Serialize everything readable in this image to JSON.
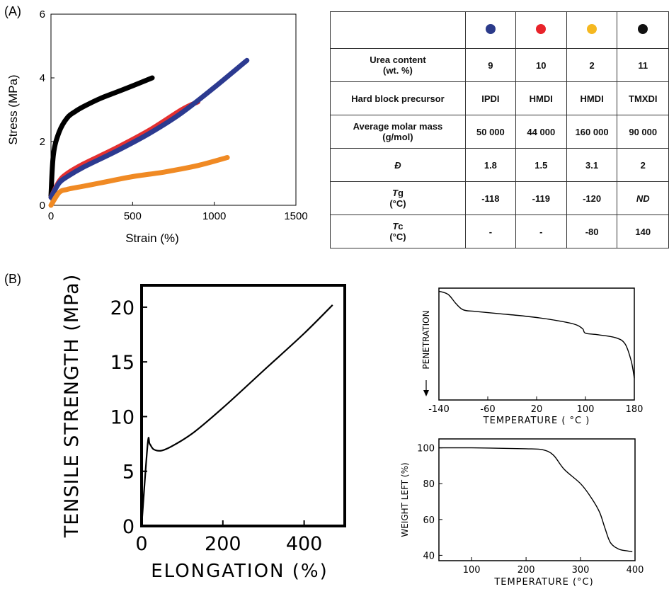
{
  "panels": {
    "a_label": "(A)",
    "b_label": "(B)"
  },
  "chart_data": [
    {
      "id": "A-stress-strain",
      "type": "line",
      "xlabel": "Strain (%)",
      "ylabel": "Stress (MPa)",
      "xlim": [
        0,
        1500
      ],
      "ylim": [
        0,
        6
      ],
      "xticks": [
        0,
        500,
        1000,
        1500
      ],
      "yticks": [
        0,
        2,
        4,
        6
      ],
      "grid": false,
      "series": [
        {
          "color": "#000000",
          "x": [
            0,
            15,
            50,
            100,
            150,
            200,
            300,
            400,
            500,
            620
          ],
          "y": [
            0.3,
            1.6,
            2.3,
            2.75,
            2.95,
            3.1,
            3.35,
            3.55,
            3.75,
            4.0
          ]
        },
        {
          "color": "#e53030",
          "x": [
            0,
            50,
            100,
            200,
            400,
            600,
            800,
            900
          ],
          "y": [
            0.25,
            0.75,
            1.0,
            1.3,
            1.8,
            2.35,
            3.0,
            3.25
          ]
        },
        {
          "color": "#2c3a90",
          "x": [
            0,
            50,
            100,
            200,
            400,
            600,
            800,
            1000,
            1200
          ],
          "y": [
            0.25,
            0.7,
            0.9,
            1.2,
            1.7,
            2.25,
            2.9,
            3.7,
            4.55
          ]
        },
        {
          "color": "#f08a24",
          "x": [
            0,
            50,
            100,
            200,
            300,
            500,
            700,
            900,
            1080
          ],
          "y": [
            0.0,
            0.4,
            0.5,
            0.6,
            0.7,
            0.9,
            1.05,
            1.25,
            1.5
          ]
        }
      ]
    },
    {
      "id": "B-tensile",
      "type": "line",
      "xlabel": "ELONGATION (%)",
      "ylabel": "TENSILE STRENGTH (MPa)",
      "xlim": [
        0,
        500
      ],
      "ylim": [
        0,
        22
      ],
      "xticks": [
        0,
        200,
        400
      ],
      "yticks": [
        0,
        5,
        10,
        15,
        20
      ],
      "grid": false,
      "series": [
        {
          "color": "#000000",
          "x": [
            0,
            15,
            20,
            30,
            50,
            80,
            130,
            200,
            300,
            400,
            470
          ],
          "y": [
            0,
            7.5,
            7.5,
            7.0,
            6.9,
            7.4,
            8.6,
            10.8,
            14.2,
            17.6,
            20.2
          ]
        }
      ]
    },
    {
      "id": "B-penetration",
      "type": "line",
      "xlabel": "TEMPERATURE ( °C )",
      "ylabel": "PENETRATION",
      "xlim": [
        -140,
        180
      ],
      "xticks": [
        -140,
        -60,
        20,
        100,
        180
      ],
      "grid": false,
      "series": [
        {
          "color": "#000000",
          "x": [
            -140,
            -125,
            -112,
            -100,
            -80,
            -40,
            0,
            40,
            80,
            95,
            100,
            120,
            150,
            165,
            175,
            180
          ],
          "y": [
            100,
            98,
            92,
            88,
            87,
            85.5,
            84,
            82,
            79,
            76,
            73,
            72,
            70,
            66,
            55,
            44
          ]
        }
      ]
    },
    {
      "id": "B-tga",
      "type": "line",
      "xlabel": "TEMPERATURE (°C)",
      "ylabel": "WEIGHT LEFT (%)",
      "xlim": [
        40,
        400
      ],
      "ylim": [
        37,
        105
      ],
      "xticks": [
        100,
        200,
        300,
        400
      ],
      "yticks": [
        40,
        60,
        80,
        100
      ],
      "grid": false,
      "series": [
        {
          "color": "#000000",
          "x": [
            40,
            100,
            150,
            200,
            230,
            250,
            270,
            300,
            320,
            335,
            345,
            355,
            370,
            385,
            395
          ],
          "y": [
            100,
            100,
            99.8,
            99.5,
            99,
            96,
            88,
            80,
            72,
            64,
            55,
            47,
            43.5,
            42.5,
            42
          ]
        }
      ]
    }
  ],
  "tableA": {
    "dots": [
      "#2b3a8a",
      "#e8232a",
      "#f5b820",
      "#111111"
    ],
    "rows": [
      {
        "label": "Urea content\n(wt. %)",
        "values": [
          "9",
          "10",
          "2",
          "11"
        ]
      },
      {
        "label": "Hard block precursor",
        "values": [
          "IPDI",
          "HMDI",
          "HMDI",
          "TMXDI"
        ]
      },
      {
        "label": "Average molar mass\n(g/mol)",
        "values": [
          "50 000",
          "44 000",
          "160 000",
          "90 000"
        ]
      },
      {
        "label": "Đ",
        "values": [
          "1.8",
          "1.5",
          "3.1",
          "2"
        ]
      },
      {
        "label_sym": "T",
        "label_sub": "g",
        "label_unit": "(°C)",
        "values": [
          "-118",
          "-119",
          "-120",
          "ND"
        ]
      },
      {
        "label_sym": "T",
        "label_sub": "c",
        "label_unit": "(°C)",
        "values": [
          "-",
          "-",
          "-80",
          "140"
        ]
      }
    ]
  }
}
